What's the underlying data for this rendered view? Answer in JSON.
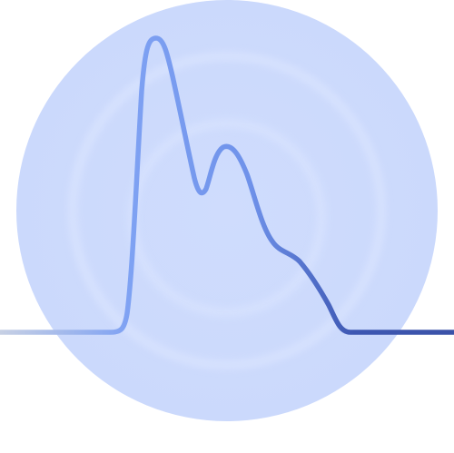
{
  "icon": {
    "name": "waveform-pulse-icon",
    "colors": {
      "circle_outer": "#cfdcfd",
      "circle_ring_light": "#d9e3fd",
      "line_start": "#c7d0e4",
      "line_mid": "#7fa2f3",
      "line_end": "#3b52a8"
    }
  }
}
